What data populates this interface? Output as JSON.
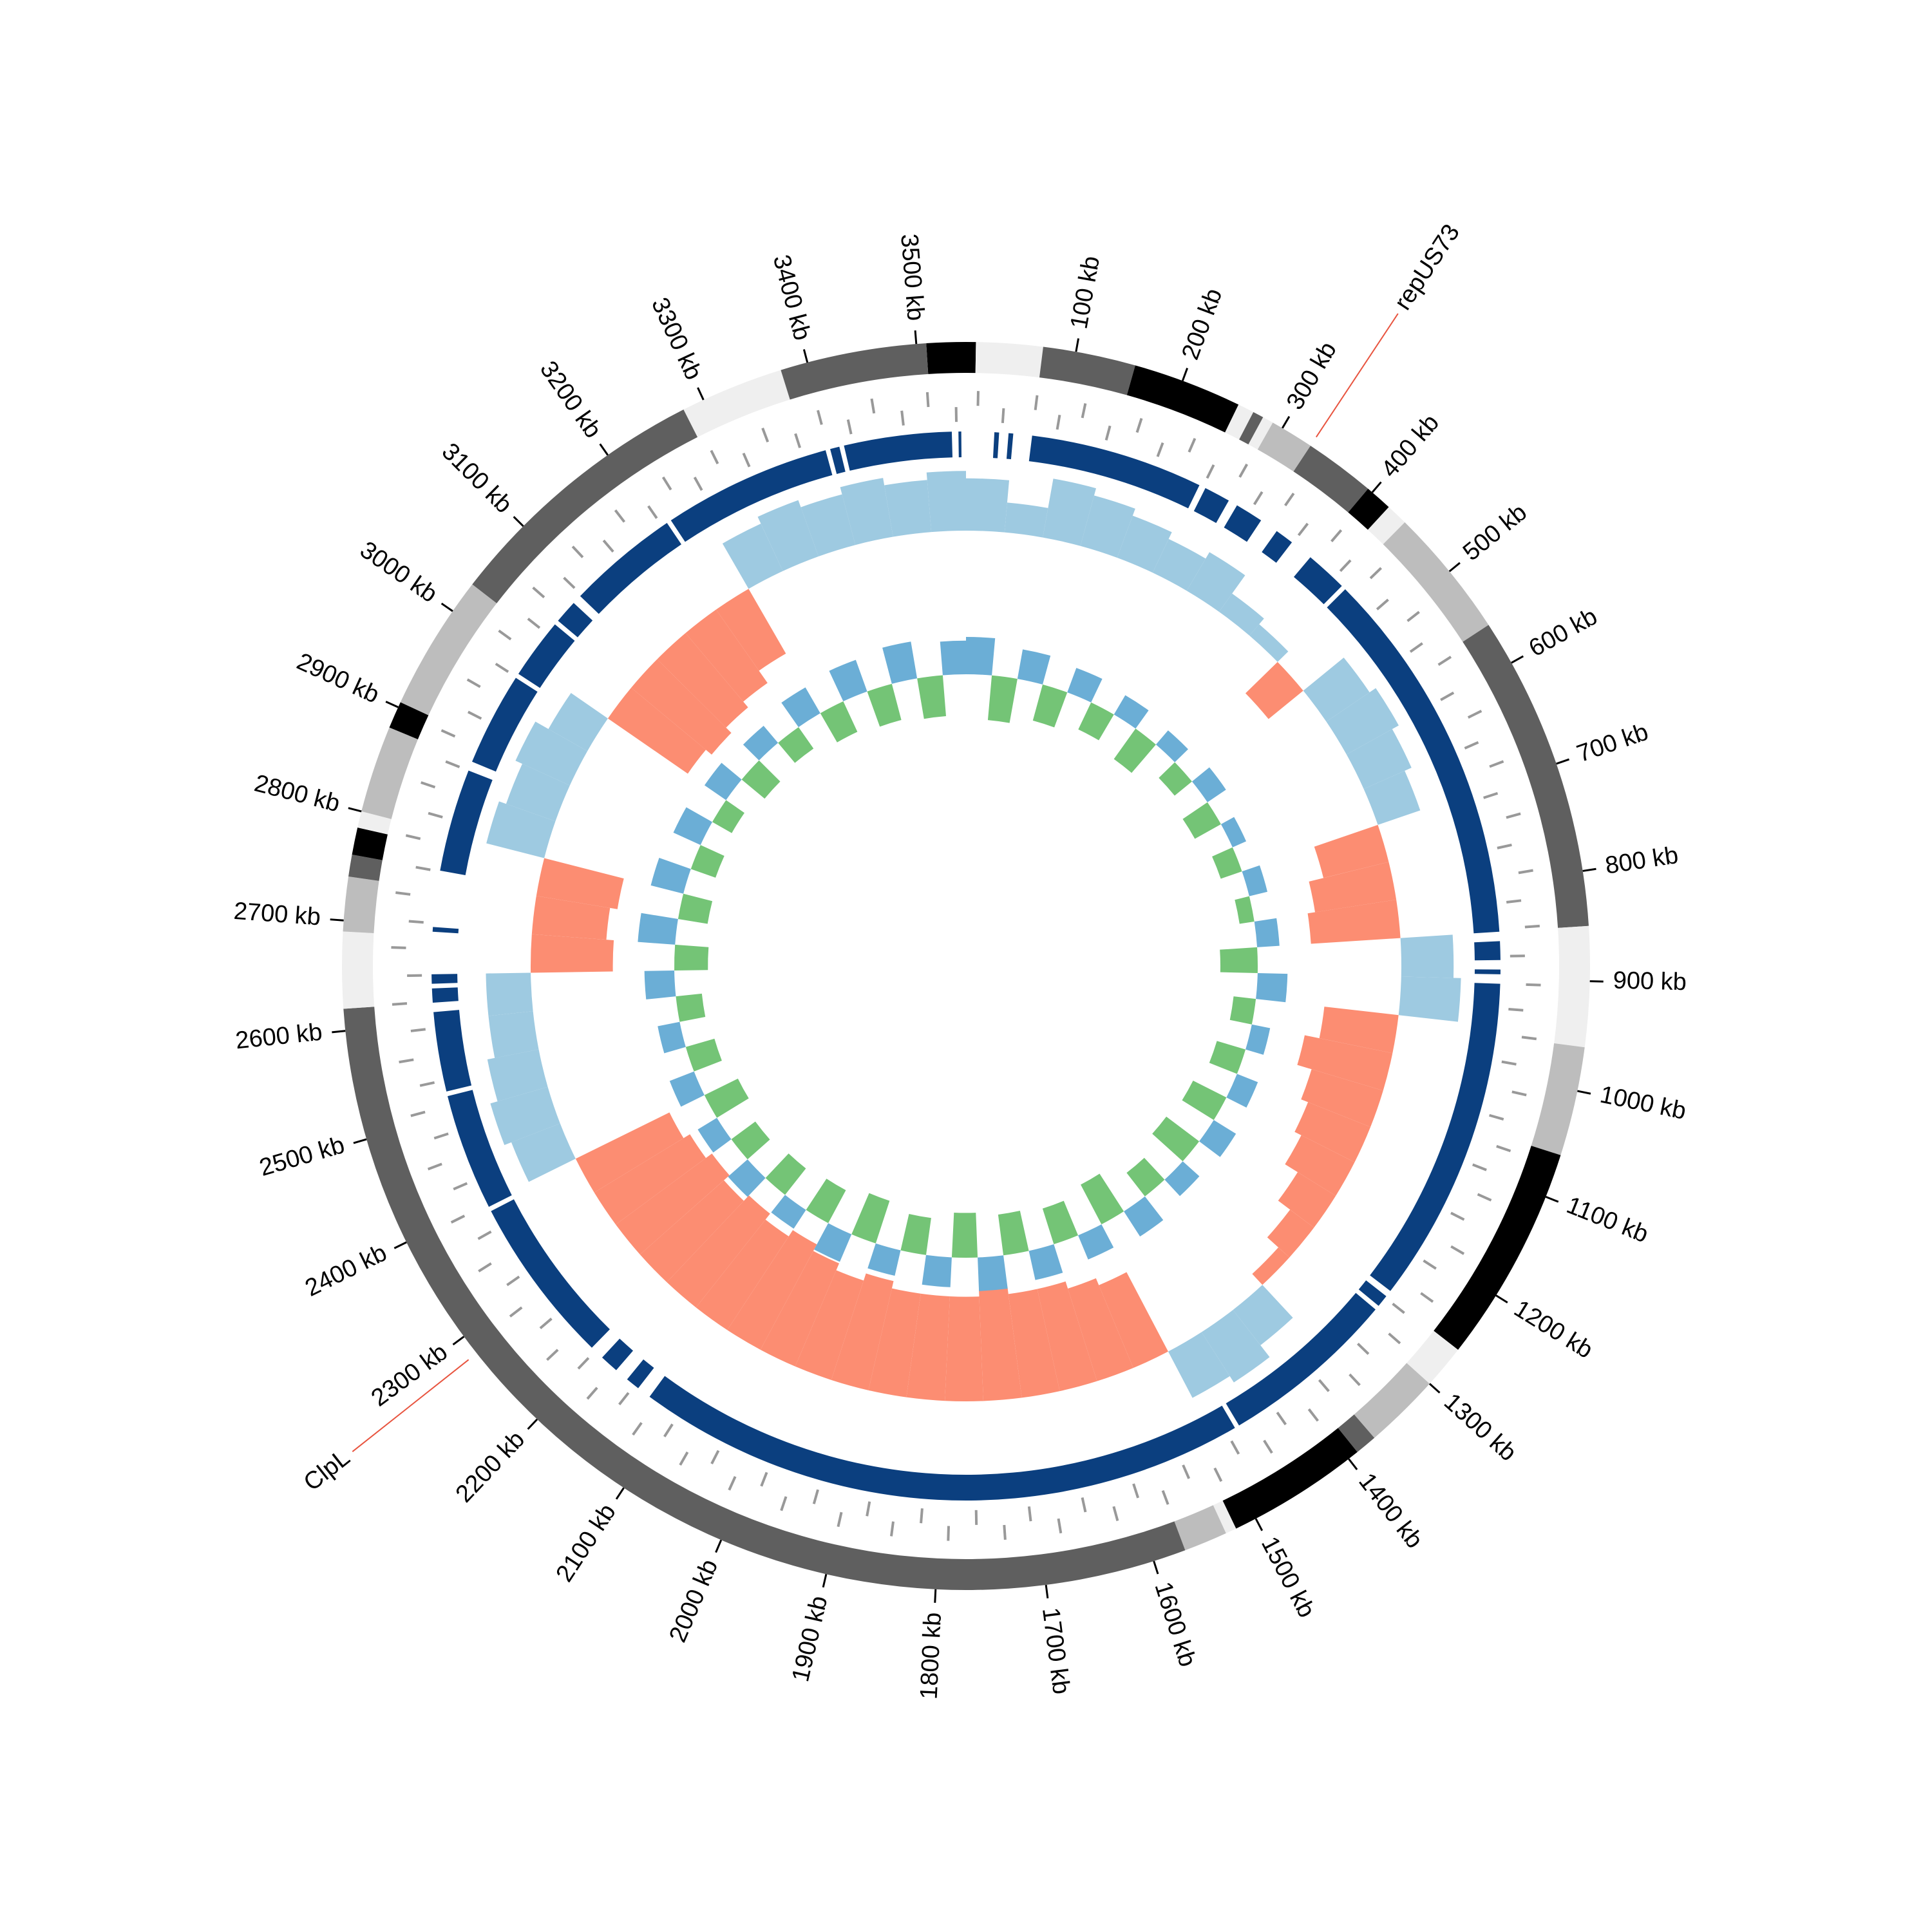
{
  "chart_data": {
    "type": "circular",
    "xlim": [
      0,
      3545
    ],
    "xticks": [
      {
        "value": 100,
        "label": "100 kb"
      },
      {
        "value": 200,
        "label": "200 kb"
      },
      {
        "value": 300,
        "label": "300 kb"
      },
      {
        "value": 400,
        "label": "400 kb"
      },
      {
        "value": 500,
        "label": "500 kb"
      },
      {
        "value": 600,
        "label": "600 kb"
      },
      {
        "value": 700,
        "label": "700 kb"
      },
      {
        "value": 800,
        "label": "800 kb"
      },
      {
        "value": 900,
        "label": "900 kb"
      },
      {
        "value": 1000,
        "label": "1000 kb"
      },
      {
        "value": 1100,
        "label": "1100 kb"
      },
      {
        "value": 1200,
        "label": "1200 kb"
      },
      {
        "value": 1300,
        "label": "1300 kb"
      },
      {
        "value": 1400,
        "label": "1400 kb"
      },
      {
        "value": 1500,
        "label": "1500 kb"
      },
      {
        "value": 1600,
        "label": "1600 kb"
      },
      {
        "value": 1700,
        "label": "1700 kb"
      },
      {
        "value": 1800,
        "label": "1800 kb"
      },
      {
        "value": 1900,
        "label": "1900 kb"
      },
      {
        "value": 2000,
        "label": "2000 kb"
      },
      {
        "value": 2100,
        "label": "2100 kb"
      },
      {
        "value": 2200,
        "label": "2200 kb"
      },
      {
        "value": 2300,
        "label": "2300 kb"
      },
      {
        "value": 2400,
        "label": "2400 kb"
      },
      {
        "value": 2500,
        "label": "2500 kb"
      },
      {
        "value": 2600,
        "label": "2600 kb"
      },
      {
        "value": 2700,
        "label": "2700 kb"
      },
      {
        "value": 2800,
        "label": "2800 kb"
      },
      {
        "value": 2900,
        "label": "2900 kb"
      },
      {
        "value": 3000,
        "label": "3000 kb"
      },
      {
        "value": 3100,
        "label": "3100 kb"
      },
      {
        "value": 3200,
        "label": "3200 kb"
      },
      {
        "value": 3300,
        "label": "3300 kb"
      },
      {
        "value": 3400,
        "label": "3400 kb"
      },
      {
        "value": 3500,
        "label": "3500 kb"
      }
    ],
    "contigs": [
      {
        "start": 3509,
        "end": 3545,
        "color": "#000000"
      },
      {
        "start": 0,
        "end": 9,
        "color": "#000000"
      },
      {
        "start": 9,
        "end": 70,
        "color": "#efefef"
      },
      {
        "start": 70,
        "end": 155,
        "color": "#5f5f5f"
      },
      {
        "start": 155,
        "end": 255,
        "color": "#000000"
      },
      {
        "start": 255,
        "end": 270,
        "color": "#efefef"
      },
      {
        "start": 270,
        "end": 280,
        "color": "#5f5f5f"
      },
      {
        "start": 280,
        "end": 290,
        "color": "#efefef"
      },
      {
        "start": 290,
        "end": 330,
        "color": "#bdbdbd"
      },
      {
        "start": 330,
        "end": 395,
        "color": "#5f5f5f"
      },
      {
        "start": 395,
        "end": 420,
        "color": "#000000"
      },
      {
        "start": 420,
        "end": 440,
        "color": "#efefef"
      },
      {
        "start": 440,
        "end": 560,
        "color": "#bdbdbd"
      },
      {
        "start": 560,
        "end": 850,
        "color": "#5f5f5f"
      },
      {
        "start": 850,
        "end": 960,
        "color": "#efefef"
      },
      {
        "start": 960,
        "end": 1060,
        "color": "#bdbdbd"
      },
      {
        "start": 1060,
        "end": 1260,
        "color": "#000000"
      },
      {
        "start": 1260,
        "end": 1300,
        "color": "#efefef"
      },
      {
        "start": 1300,
        "end": 1370,
        "color": "#bdbdbd"
      },
      {
        "start": 1370,
        "end": 1390,
        "color": "#5f5f5f"
      },
      {
        "start": 1390,
        "end": 1520,
        "color": "#000000"
      },
      {
        "start": 1520,
        "end": 1530,
        "color": "#efefef"
      },
      {
        "start": 1530,
        "end": 1570,
        "color": "#bdbdbd"
      },
      {
        "start": 1570,
        "end": 2620,
        "color": "#5f5f5f"
      },
      {
        "start": 2620,
        "end": 2690,
        "color": "#efefef"
      },
      {
        "start": 2690,
        "end": 2740,
        "color": "#bdbdbd"
      },
      {
        "start": 2740,
        "end": 2760,
        "color": "#5f5f5f"
      },
      {
        "start": 2760,
        "end": 2785,
        "color": "#000000"
      },
      {
        "start": 2785,
        "end": 2800,
        "color": "#efefef"
      },
      {
        "start": 2800,
        "end": 2880,
        "color": "#bdbdbd"
      },
      {
        "start": 2880,
        "end": 2905,
        "color": "#000000"
      },
      {
        "start": 2905,
        "end": 3030,
        "color": "#bdbdbd"
      },
      {
        "start": 3030,
        "end": 3280,
        "color": "#5f5f5f"
      },
      {
        "start": 3280,
        "end": 3375,
        "color": "#efefef"
      },
      {
        "start": 3375,
        "end": 3509,
        "color": "#5f5f5f"
      }
    ],
    "gene_color": "#999999",
    "genes_forward": [
      12,
      70,
      118,
      175,
      231,
      288,
      342,
      401,
      455,
      512,
      566,
      627,
      681,
      735,
      792,
      847,
      905,
      958,
      1014,
      1071,
      1123,
      1182,
      1238,
      1290,
      1347,
      1401,
      1456,
      1513,
      1570,
      1622,
      1679,
      1734,
      1790,
      1846,
      1899,
      1957,
      2012,
      2066,
      2121,
      2178,
      2233,
      2289,
      2343,
      2398,
      2455,
      2510,
      2564,
      2621,
      2677,
      2731,
      2788,
      2842,
      2897,
      2953,
      3010,
      3064,
      3120,
      3175,
      3232,
      3286,
      3341,
      3398,
      3452,
      3507
    ],
    "genes_reverse": [
      38,
      95,
      147,
      203,
      259,
      315,
      371,
      428,
      483,
      539,
      598,
      654,
      709,
      763,
      820,
      876,
      931,
      986,
      1043,
      1097,
      1152,
      1209,
      1264,
      1319,
      1374,
      1429,
      1485,
      1541,
      1596,
      1651,
      1707,
      1762,
      1818,
      1873,
      1928,
      1984,
      2039,
      2094,
      2150,
      2205,
      2261,
      2316,
      2371,
      2427,
      2482,
      2537,
      2593,
      2649,
      2704,
      2759,
      2815,
      2870,
      2925,
      2981,
      3037,
      3092,
      3147,
      3204,
      3259,
      3314,
      3370,
      3425,
      3480,
      3535
    ],
    "hit_color": "#0b3f7f",
    "hits": [
      [
        70,
        255
      ],
      [
        262,
        290
      ],
      [
        300,
        330
      ],
      [
        350,
        370
      ],
      [
        395,
        440
      ],
      [
        445,
        850
      ],
      [
        860,
        880
      ],
      [
        890,
        895
      ],
      [
        905,
        1255
      ],
      [
        1262,
        1275
      ],
      [
        1280,
        1470
      ],
      [
        1475,
        2130
      ],
      [
        2145,
        2160
      ],
      [
        2175,
        2195
      ],
      [
        2210,
        2390
      ],
      [
        2395,
        2520
      ],
      [
        2525,
        2610
      ],
      [
        2620,
        2635
      ],
      [
        2640,
        2650
      ],
      [
        2695,
        2700
      ],
      [
        2760,
        2870
      ],
      [
        2880,
        2980
      ],
      [
        2985,
        3050
      ],
      [
        3055,
        3080
      ],
      [
        3090,
        3210
      ],
      [
        3215,
        3395
      ],
      [
        3400,
        3410
      ],
      [
        3415,
        3530
      ],
      [
        3537,
        3540
      ],
      [
        30,
        35
      ],
      [
        45,
        50
      ]
    ],
    "x": [
      0,
      50,
      100,
      150,
      200,
      250,
      300,
      350,
      400,
      450,
      500,
      550,
      600,
      650,
      700,
      750,
      800,
      850,
      900,
      950,
      1000,
      1050,
      1100,
      1150,
      1200,
      1250,
      1300,
      1350,
      1400,
      1450,
      1500,
      1550,
      1600,
      1650,
      1700,
      1750,
      1800,
      1850,
      1900,
      1950,
      2000,
      2050,
      2100,
      2150,
      2200,
      2250,
      2300,
      2350,
      2400,
      2450,
      2500,
      2550,
      2600,
      2650,
      2700,
      2750,
      2800,
      2850,
      2900,
      2950,
      3000,
      3050,
      3100,
      3150,
      3200,
      3250,
      3300,
      3350,
      3400,
      3450,
      3500
    ],
    "gc_skew": {
      "ylim": [
        -1,
        0.5
      ],
      "positive_color": "#9ecae1",
      "negative_color": "#fc8d72",
      "values": [
        0.35,
        0.2,
        0.4,
        0.35,
        0.3,
        0.25,
        0.3,
        0.15,
        0.1,
        -0.3,
        0.35,
        0.4,
        0.35,
        0.3,
        -0.45,
        -0.55,
        -0.6,
        0.35,
        0.4,
        -0.5,
        -0.6,
        -0.5,
        -0.45,
        -0.4,
        -0.3,
        -0.2,
        -0.1,
        0.3,
        0.4,
        0.35,
        -0.6,
        -0.65,
        -0.7,
        -0.7,
        -0.75,
        -0.7,
        -0.7,
        -0.7,
        -0.75,
        -0.7,
        -0.75,
        -0.8,
        -0.75,
        -0.8,
        -0.75,
        -0.8,
        -0.75,
        -0.7,
        0.35,
        0.4,
        0.35,
        0.3,
        0.3,
        -0.55,
        -0.5,
        -0.55,
        0.4,
        0.35,
        0.4,
        0.3,
        -0.65,
        -0.7,
        -0.65,
        -0.6,
        -0.5,
        0.35,
        0.4,
        0.35,
        0.4,
        0.35,
        0.4
      ]
    },
    "gc_content": {
      "ylim": [
        -1,
        1
      ],
      "positive_color": "#6baed6",
      "negative_color": "#74c476",
      "values": [
        0.5,
        -0.6,
        0.4,
        -0.5,
        0.35,
        -0.4,
        0.3,
        -0.5,
        0.25,
        -0.3,
        0.3,
        -0.4,
        0.2,
        -0.3,
        0.25,
        -0.2,
        0.3,
        -0.5,
        0.4,
        -0.3,
        0.25,
        -0.4,
        0.3,
        -0.5,
        0.35,
        -0.55,
        0.3,
        -0.4,
        0.4,
        -0.6,
        0.35,
        -0.5,
        0.4,
        -0.55,
        0.45,
        -0.6,
        0.4,
        -0.5,
        0.35,
        -0.6,
        0.4,
        -0.5,
        0.3,
        -0.45,
        0.35,
        -0.4,
        0.3,
        -0.5,
        0.35,
        -0.4,
        0.3,
        -0.35,
        0.4,
        -0.45,
        0.5,
        -0.4,
        0.45,
        -0.35,
        0.4,
        -0.3,
        0.35,
        -0.4,
        0.3,
        -0.35,
        0.4,
        -0.45,
        0.45,
        -0.5,
        0.5,
        -0.55,
        0.45
      ]
    },
    "annotation_text_color": "#2166ac",
    "annotation_line_color": "#e8543f",
    "annotations": [
      {
        "label": "repUS73",
        "position": 330
      },
      {
        "label": "ClpL",
        "position": 2281
      }
    ]
  }
}
